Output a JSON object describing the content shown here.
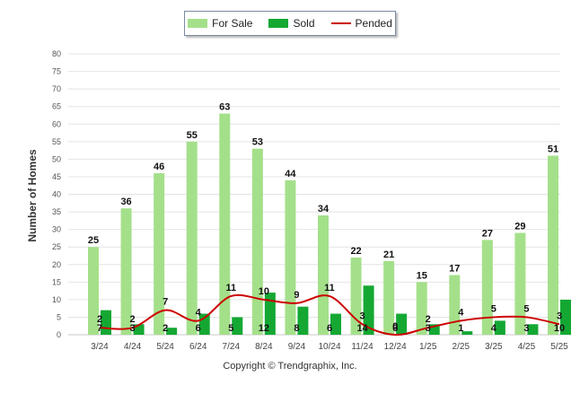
{
  "legend": {
    "for_sale": "For Sale",
    "sold": "Sold",
    "pended": "Pended"
  },
  "colors": {
    "for_sale": "#a4e08a",
    "sold": "#14a833",
    "pended": "#cc0000",
    "grid": "#e4e4e4"
  },
  "footer": {
    "copyright": "Copyright © Trendgraphix, Inc."
  },
  "chart_data": {
    "type": "bar",
    "ylabel": "Number of Homes",
    "ylim": [
      0,
      80
    ],
    "yticks": [
      0,
      5,
      10,
      15,
      20,
      25,
      30,
      35,
      40,
      45,
      50,
      55,
      60,
      65,
      70,
      75,
      80
    ],
    "grid": true,
    "legend_position": "top-center",
    "categories": [
      "3/24",
      "4/24",
      "5/24",
      "6/24",
      "7/24",
      "8/24",
      "9/24",
      "10/24",
      "11/24",
      "12/24",
      "1/25",
      "2/25",
      "3/25",
      "4/25",
      "5/25"
    ],
    "series": [
      {
        "name": "For Sale",
        "kind": "bar",
        "values": [
          25,
          36,
          46,
          55,
          63,
          53,
          44,
          34,
          22,
          21,
          15,
          17,
          27,
          29,
          51
        ]
      },
      {
        "name": "Sold",
        "kind": "bar",
        "values": [
          7,
          3,
          2,
          6,
          5,
          12,
          8,
          6,
          14,
          6,
          3,
          1,
          4,
          3,
          10
        ]
      },
      {
        "name": "Pended",
        "kind": "line",
        "values": [
          2,
          2,
          7,
          4,
          11,
          10,
          9,
          11,
          3,
          0,
          2,
          4,
          5,
          5,
          3
        ]
      }
    ]
  }
}
